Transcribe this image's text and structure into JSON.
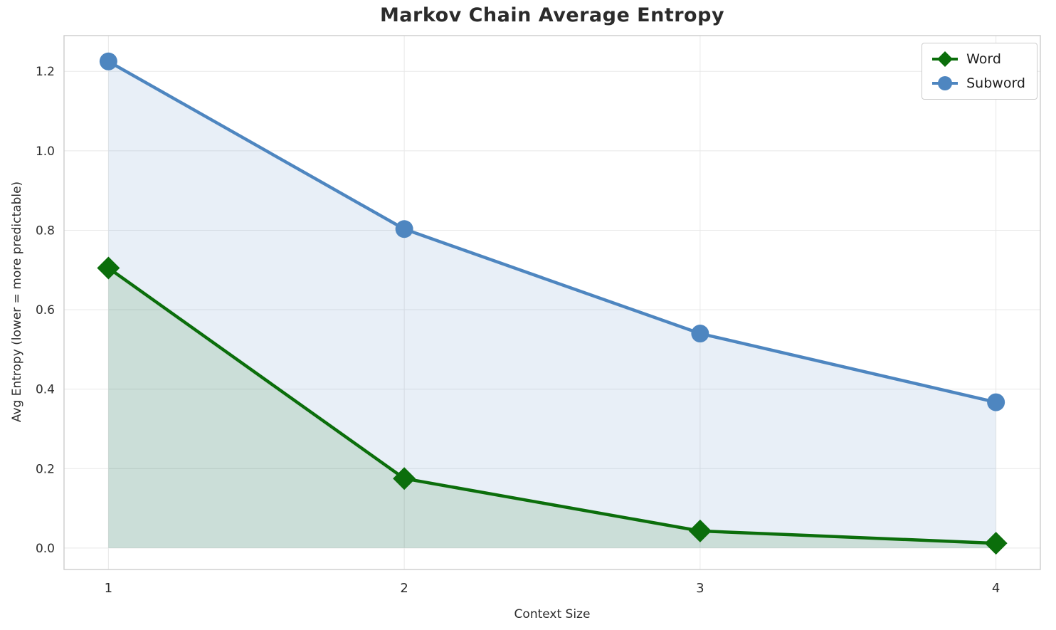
{
  "title": "Markov Chain Average Entropy",
  "chart_data": {
    "type": "line",
    "title": "Markov Chain Average Entropy",
    "xlabel": "Context Size",
    "ylabel": "Avg Entropy (lower = more predictable)",
    "x": [
      1,
      2,
      3,
      4
    ],
    "series": [
      {
        "name": "Word",
        "values": [
          0.705,
          0.175,
          0.043,
          0.012
        ],
        "color": "#0b6e0b",
        "marker": "diamond",
        "area_fill": true
      },
      {
        "name": "Subword",
        "values": [
          1.225,
          0.803,
          0.54,
          0.367
        ],
        "color": "#4e86c0",
        "marker": "circle",
        "area_fill": true
      }
    ],
    "xlim": [
      0.85,
      4.15
    ],
    "ylim": [
      -0.054,
      1.29
    ],
    "xticks": [
      1,
      2,
      3,
      4
    ],
    "xtick_labels": [
      "1",
      "2",
      "3",
      "4"
    ],
    "yticks": [
      0.0,
      0.2,
      0.4,
      0.6,
      0.8,
      1.0,
      1.2
    ],
    "ytick_labels": [
      "0.0",
      "0.2",
      "0.4",
      "0.6",
      "0.8",
      "1.0",
      "1.2"
    ],
    "grid": true,
    "legend_position": "upper right",
    "colors": {
      "grid": "#e8e8e8",
      "spine": "#cccccc",
      "tick_text": "#2d2d2d",
      "area_opacity": 0.13
    }
  },
  "legend": {
    "entries": [
      {
        "label": "Word"
      },
      {
        "label": "Subword"
      }
    ]
  }
}
